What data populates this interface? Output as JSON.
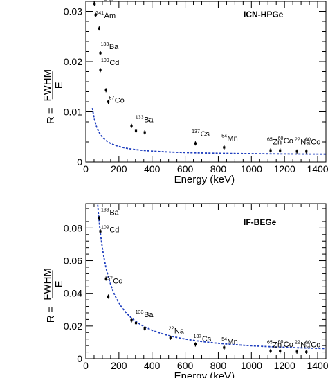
{
  "chart_data": [
    {
      "type": "scatter",
      "label": "ICN-HPGe",
      "xlabel": "Energy (keV)",
      "ylabel": {
        "prefix": "R =",
        "numerator": "FWHM",
        "denominator": "E"
      },
      "xlim": [
        0,
        1450
      ],
      "ylim": [
        0,
        0.032
      ],
      "xticks": [
        0,
        200,
        400,
        600,
        800,
        1000,
        1200,
        1400
      ],
      "yticks": [
        0,
        0.01,
        0.02,
        0.03
      ],
      "ytick_labels": [
        "0",
        "0.01",
        "0.02",
        "0.03"
      ],
      "fit_color": "#1f3fbf",
      "fit": {
        "form": "sqrt(a/E^2 + b/E + c)",
        "a": 0.15,
        "b": 0.0008,
        "c": 1.8e-06
      },
      "points": [
        {
          "x": 53,
          "y": 0.0315
        },
        {
          "x": 59.5,
          "y": 0.0293
        },
        {
          "x": 81,
          "y": 0.0266
        },
        {
          "x": 88,
          "y": 0.0217
        },
        {
          "x": 88,
          "y": 0.0183
        },
        {
          "x": 122,
          "y": 0.0143
        },
        {
          "x": 136,
          "y": 0.012
        },
        {
          "x": 276,
          "y": 0.0072
        },
        {
          "x": 303,
          "y": 0.0062
        },
        {
          "x": 356,
          "y": 0.0059
        },
        {
          "x": 662,
          "y": 0.0037
        },
        {
          "x": 835,
          "y": 0.0029
        },
        {
          "x": 1116,
          "y": 0.0023
        },
        {
          "x": 1173,
          "y": 0.0023
        },
        {
          "x": 1275,
          "y": 0.0021
        },
        {
          "x": 1332,
          "y": 0.0021
        }
      ],
      "annotations": [
        {
          "sup": "133",
          "text": "Ba",
          "x": 55,
          "y": 0.0322
        },
        {
          "sup": "241",
          "text": "Am",
          "x": 60,
          "y": 0.0287
        },
        {
          "sup": "133",
          "text": "Ba",
          "x": 90,
          "y": 0.0225
        },
        {
          "sup": "109",
          "text": "Cd",
          "x": 92,
          "y": 0.0193
        },
        {
          "sup": "57",
          "text": "Co",
          "x": 140,
          "y": 0.0118
        },
        {
          "sup": "133",
          "text": "Ba",
          "x": 300,
          "y": 0.0079
        },
        {
          "sup": "137",
          "text": "Cs",
          "x": 640,
          "y": 0.0051
        },
        {
          "sup": "54",
          "text": "Mn",
          "x": 820,
          "y": 0.0042
        },
        {
          "sup": "65",
          "text": "Zn",
          "x": 1095,
          "y": 0.0035
        },
        {
          "sup": "60",
          "text": "Co",
          "x": 1160,
          "y": 0.0037
        },
        {
          "sup": "22",
          "text": "Na",
          "x": 1262,
          "y": 0.0035
        },
        {
          "sup": "60",
          "text": "Co",
          "x": 1325,
          "y": 0.0035
        }
      ]
    },
    {
      "type": "scatter",
      "label": "IF-BEGe",
      "xlabel": "Energy (keV)",
      "ylabel": {
        "prefix": "R =",
        "numerator": "FWHM",
        "denominator": "E"
      },
      "xlim": [
        0,
        1450
      ],
      "ylim": [
        0,
        0.095
      ],
      "xticks": [
        0,
        200,
        400,
        600,
        800,
        1000,
        1200,
        1400
      ],
      "yticks": [
        0,
        0.02,
        0.04,
        0.06,
        0.08
      ],
      "ytick_labels": [
        "0",
        "0.02",
        "0.04",
        "0.06",
        "0.08"
      ],
      "fit_color": "#1f3fbf",
      "fit": {
        "form": "sqrt(a/E^2 + b/E + c)",
        "a": 46,
        "b": 0.0,
        "c": 1.65e-05
      },
      "points": [
        {
          "x": 81,
          "y": 0.086
        },
        {
          "x": 88,
          "y": 0.078
        },
        {
          "x": 122,
          "y": 0.049
        },
        {
          "x": 136,
          "y": 0.038
        },
        {
          "x": 276,
          "y": 0.0235
        },
        {
          "x": 303,
          "y": 0.0218
        },
        {
          "x": 356,
          "y": 0.0185
        },
        {
          "x": 511,
          "y": 0.0128
        },
        {
          "x": 662,
          "y": 0.0087
        },
        {
          "x": 835,
          "y": 0.0068
        },
        {
          "x": 1116,
          "y": 0.0047
        },
        {
          "x": 1173,
          "y": 0.0045
        },
        {
          "x": 1275,
          "y": 0.0043
        },
        {
          "x": 1332,
          "y": 0.0041
        }
      ],
      "annotations": [
        {
          "sup": "133",
          "text": "Ba",
          "x": 92,
          "y": 0.088
        },
        {
          "sup": "109",
          "text": "Cd",
          "x": 92,
          "y": 0.0775
        },
        {
          "sup": "57",
          "text": "Co",
          "x": 130,
          "y": 0.046
        },
        {
          "sup": "133",
          "text": "Ba",
          "x": 300,
          "y": 0.0255
        },
        {
          "sup": "22",
          "text": "Na",
          "x": 500,
          "y": 0.0155
        },
        {
          "sup": "137",
          "text": "Cs",
          "x": 650,
          "y": 0.0105
        },
        {
          "sup": "54",
          "text": "Mn",
          "x": 820,
          "y": 0.009
        },
        {
          "sup": "65",
          "text": "Zn",
          "x": 1095,
          "y": 0.007
        },
        {
          "sup": "60",
          "text": "Co",
          "x": 1160,
          "y": 0.0072
        },
        {
          "sup": "22",
          "text": "Na",
          "x": 1262,
          "y": 0.007
        },
        {
          "sup": "60",
          "text": "Co",
          "x": 1325,
          "y": 0.007
        }
      ]
    }
  ]
}
